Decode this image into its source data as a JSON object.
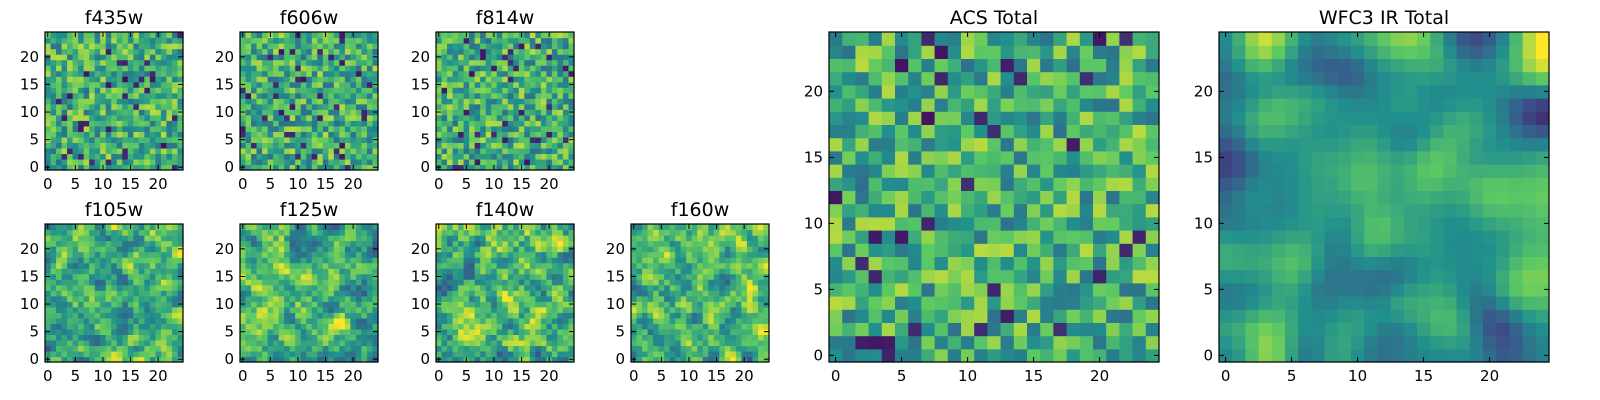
{
  "chart_data": [
    {
      "type": "heatmap",
      "title": "f435w",
      "xlim": [
        0,
        25
      ],
      "ylim": [
        0,
        25
      ],
      "xticks": [
        0,
        5,
        10,
        15,
        20
      ],
      "yticks": [
        0,
        5,
        10,
        15,
        20
      ],
      "grid": false,
      "pattern": "noise",
      "pixelation": 1,
      "seed": 11
    },
    {
      "type": "heatmap",
      "title": "f606w",
      "xlim": [
        0,
        25
      ],
      "ylim": [
        0,
        25
      ],
      "xticks": [
        0,
        5,
        10,
        15,
        20
      ],
      "yticks": [
        0,
        5,
        10,
        15,
        20
      ],
      "grid": false,
      "pattern": "noise",
      "pixelation": 1,
      "seed": 23
    },
    {
      "type": "heatmap",
      "title": "f814w",
      "xlim": [
        0,
        25
      ],
      "ylim": [
        0,
        25
      ],
      "xticks": [
        0,
        5,
        10,
        15,
        20
      ],
      "yticks": [
        0,
        5,
        10,
        15,
        20
      ],
      "grid": false,
      "pattern": "noise",
      "pixelation": 1,
      "seed": 37
    },
    {
      "type": "heatmap",
      "title": "f105w",
      "xlim": [
        0,
        25
      ],
      "ylim": [
        0,
        25
      ],
      "xticks": [
        0,
        5,
        10,
        15,
        20
      ],
      "yticks": [
        0,
        5,
        10,
        15,
        20
      ],
      "grid": false,
      "pattern": "smooth",
      "pixelation": 1,
      "seed": 41
    },
    {
      "type": "heatmap",
      "title": "f125w",
      "xlim": [
        0,
        25
      ],
      "ylim": [
        0,
        25
      ],
      "xticks": [
        0,
        5,
        10,
        15,
        20
      ],
      "yticks": [
        0,
        5,
        10,
        15,
        20
      ],
      "grid": false,
      "pattern": "smooth",
      "pixelation": 1,
      "seed": 53
    },
    {
      "type": "heatmap",
      "title": "f140w",
      "xlim": [
        0,
        25
      ],
      "ylim": [
        0,
        25
      ],
      "xticks": [
        0,
        5,
        10,
        15,
        20
      ],
      "yticks": [
        0,
        5,
        10,
        15,
        20
      ],
      "grid": false,
      "pattern": "smooth",
      "pixelation": 1,
      "seed": 67
    },
    {
      "type": "heatmap",
      "title": "f160w",
      "xlim": [
        0,
        25
      ],
      "ylim": [
        0,
        25
      ],
      "xticks": [
        0,
        5,
        10,
        15,
        20
      ],
      "yticks": [
        0,
        5,
        10,
        15,
        20
      ],
      "grid": false,
      "pattern": "smooth",
      "pixelation": 1,
      "seed": 79
    },
    {
      "type": "heatmap",
      "title": "ACS Total",
      "xlim": [
        0,
        25
      ],
      "ylim": [
        0,
        25
      ],
      "xticks": [
        0,
        5,
        10,
        15,
        20
      ],
      "yticks": [
        0,
        5,
        10,
        15,
        20
      ],
      "grid": false,
      "pattern": "noise",
      "pixelation": 1,
      "seed": 97
    },
    {
      "type": "heatmap",
      "title": "WFC3 IR Total",
      "xlim": [
        0,
        25
      ],
      "ylim": [
        0,
        25
      ],
      "xticks": [
        0,
        5,
        10,
        15,
        20
      ],
      "yticks": [
        0,
        5,
        10,
        15,
        20
      ],
      "grid": false,
      "pattern": "blob",
      "pixelation": 1,
      "seed": 113
    }
  ],
  "colormap": [
    "#440154",
    "#3b528b",
    "#21908d",
    "#5dc963",
    "#fde725"
  ]
}
